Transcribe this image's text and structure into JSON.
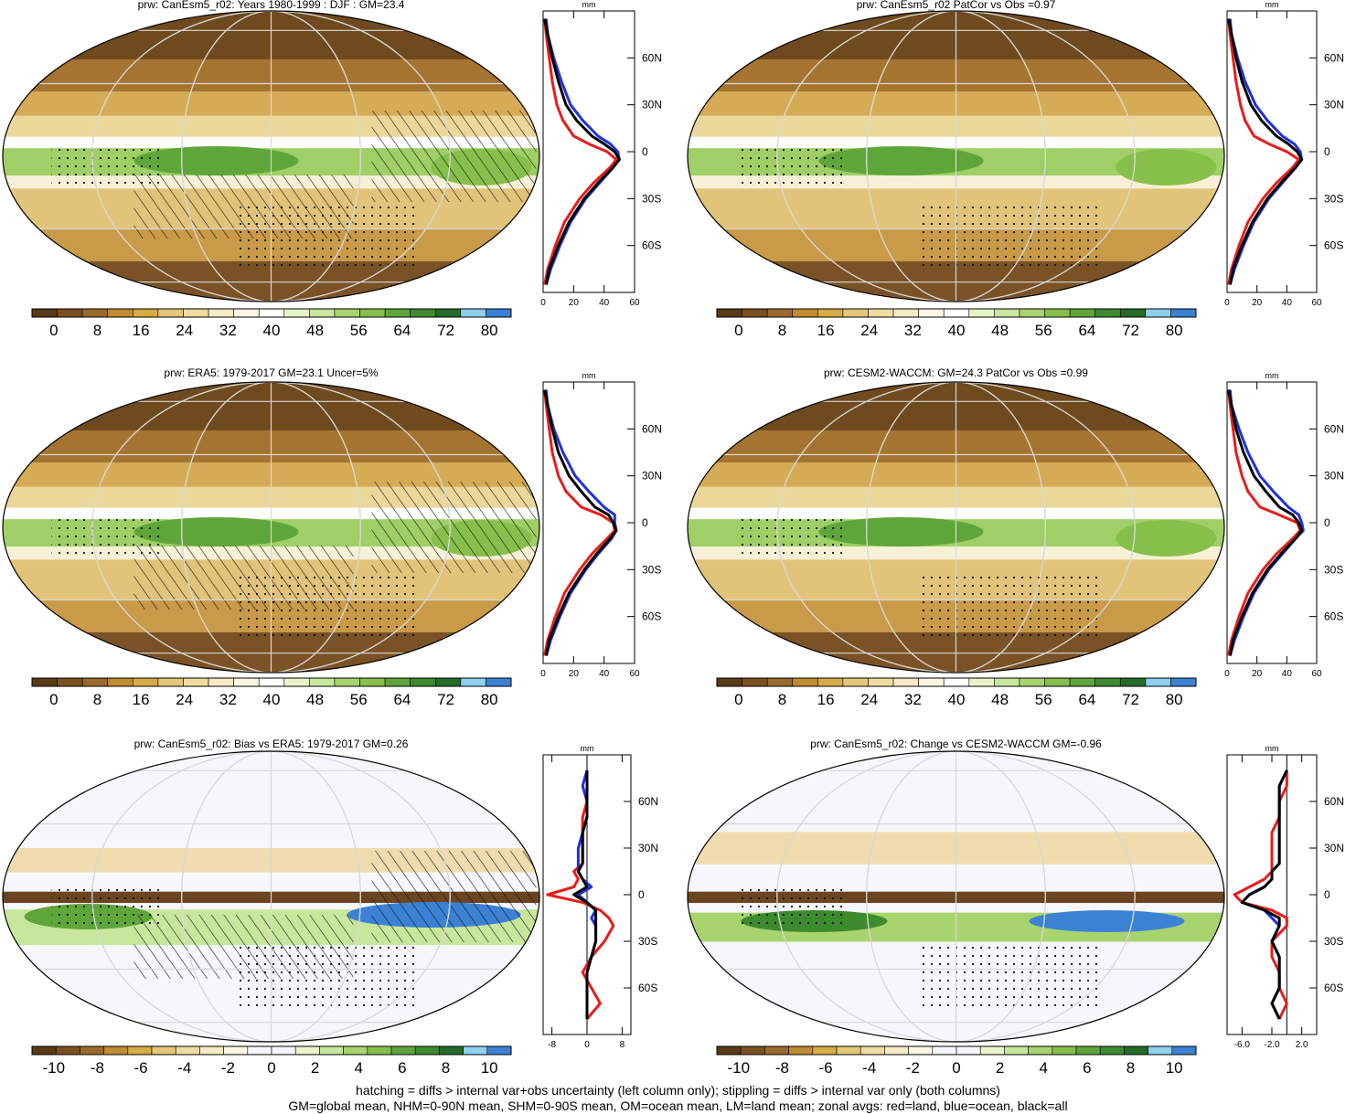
{
  "panels": [
    {
      "title": "prw: CanEsm5_r02: Years 1980-1999 : DJF : GM=23.4",
      "kind": "abs",
      "hatch": true,
      "stipple": true
    },
    {
      "title": "prw: CanEsm5_r02 PatCor vs Obs =0.97",
      "kind": "abs",
      "hatch": false,
      "stipple": true
    },
    {
      "title": "prw: ERA5: 1979-2017 GM=23.1 Uncer=5%",
      "kind": "abs",
      "hatch": true,
      "stipple": true
    },
    {
      "title": "prw: CESM2-WACCM: GM=24.3 PatCor vs Obs =0.99",
      "kind": "abs",
      "hatch": false,
      "stipple": true
    },
    {
      "title": "prw: CanEsm5_r02: Bias vs ERA5: 1979-2017 GM=0.26",
      "kind": "diff",
      "hatch": true,
      "stipple": true
    },
    {
      "title": "prw: CanEsm5_r02: Change vs CESM2-WACCM GM=-0.96",
      "kind": "diff2",
      "hatch": false,
      "stipple": true
    }
  ],
  "colorbars": {
    "abs_labels": [
      "0",
      "8",
      "16",
      "24",
      "32",
      "40",
      "48",
      "56",
      "64",
      "72",
      "80"
    ],
    "diff_labels": [
      "-10",
      "-8",
      "-6",
      "-4",
      "-2",
      "0",
      "2",
      "4",
      "6",
      "8",
      "10"
    ],
    "abs_colors": [
      "#5a3a14",
      "#7b5021",
      "#9a6a2b",
      "#c08b32",
      "#d7ab45",
      "#e5c877",
      "#efdc9f",
      "#f6ebc5",
      "#fbf6e3",
      "#ffffff",
      "#e9f5c9",
      "#c9e79c",
      "#a8d46d",
      "#86c04b",
      "#5fa63a",
      "#3d8a2f",
      "#246b27",
      "#8fd0ef",
      "#3b82d4"
    ],
    "diff_colors": [
      "#5a3a14",
      "#7b5021",
      "#9a6a2b",
      "#c08b32",
      "#d7ab45",
      "#e5c877",
      "#efdc9f",
      "#f6ebc5",
      "#fbf6e3",
      "#f5f7fc",
      "#f5f7fc",
      "#e9f5c9",
      "#c9e79c",
      "#a8d46d",
      "#86c04b",
      "#5fa63a",
      "#3d8a2f",
      "#246b27",
      "#8fd0ef",
      "#3b82d4"
    ]
  },
  "zonal": {
    "unit": "mm",
    "lat_ticks": [
      "60N",
      "30N",
      "0",
      "30S",
      "60S"
    ],
    "abs_xticks": [
      "0",
      "20",
      "40",
      "60"
    ],
    "bias_xticks": [
      "-8",
      "0",
      "8"
    ],
    "change_xticks": [
      "-6.0",
      "-2.0",
      "2.0"
    ],
    "series_colors": {
      "land": "#e81c1c",
      "ocean": "#1f2fe0",
      "all": "#000000"
    }
  },
  "chart_data": [
    {
      "type": "line",
      "title": "prw: CanEsm5_r02: Years 1980-1999 : DJF : GM=23.4",
      "ylabel": "",
      "xlabel": "mm",
      "xlim": [
        0,
        60
      ],
      "ylim": [
        -90,
        90
      ],
      "y": [
        -85,
        -75,
        -60,
        -45,
        -30,
        -20,
        -10,
        -5,
        0,
        5,
        10,
        20,
        30,
        45,
        60,
        75,
        85
      ],
      "series": [
        {
          "name": "land",
          "values": [
            1,
            3,
            8,
            14,
            24,
            33,
            44,
            48,
            42,
            30,
            20,
            13,
            9,
            6,
            4,
            2,
            1
          ]
        },
        {
          "name": "ocean",
          "values": [
            2,
            5,
            11,
            18,
            28,
            37,
            46,
            50,
            49,
            44,
            36,
            26,
            18,
            12,
            7,
            3,
            2
          ]
        },
        {
          "name": "all",
          "values": [
            2,
            4,
            10,
            17,
            27,
            36,
            46,
            50,
            47,
            40,
            32,
            22,
            15,
            10,
            6,
            3,
            1
          ]
        }
      ]
    },
    {
      "type": "line",
      "title": "prw: CanEsm5_r02 PatCor vs Obs =0.97",
      "ylabel": "",
      "xlabel": "mm",
      "xlim": [
        0,
        60
      ],
      "ylim": [
        -90,
        90
      ],
      "y": [
        -85,
        -75,
        -60,
        -45,
        -30,
        -20,
        -10,
        -5,
        0,
        5,
        10,
        20,
        30,
        45,
        60,
        75,
        85
      ],
      "series": [
        {
          "name": "land",
          "values": [
            1,
            3,
            8,
            14,
            24,
            33,
            44,
            48,
            40,
            28,
            18,
            12,
            9,
            6,
            4,
            2,
            1
          ]
        },
        {
          "name": "ocean",
          "values": [
            2,
            5,
            11,
            18,
            28,
            37,
            46,
            50,
            49,
            45,
            37,
            27,
            19,
            12,
            7,
            3,
            2
          ]
        },
        {
          "name": "all",
          "values": [
            2,
            4,
            10,
            17,
            27,
            36,
            46,
            50,
            47,
            41,
            33,
            23,
            16,
            10,
            6,
            3,
            1
          ]
        }
      ]
    },
    {
      "type": "line",
      "title": "prw: ERA5: 1979-2017 GM=23.1 Uncer=5%",
      "ylabel": "",
      "xlabel": "mm",
      "xlim": [
        0,
        60
      ],
      "ylim": [
        -90,
        90
      ],
      "y": [
        -85,
        -75,
        -60,
        -45,
        -30,
        -20,
        -10,
        -5,
        0,
        5,
        10,
        20,
        30,
        45,
        60,
        75,
        85
      ],
      "series": [
        {
          "name": "land",
          "values": [
            1,
            3,
            8,
            14,
            24,
            32,
            42,
            47,
            46,
            38,
            25,
            15,
            10,
            6,
            4,
            2,
            1
          ]
        },
        {
          "name": "ocean",
          "values": [
            2,
            5,
            11,
            18,
            28,
            36,
            45,
            48,
            47,
            47,
            40,
            30,
            21,
            13,
            7,
            3,
            2
          ]
        },
        {
          "name": "all",
          "values": [
            2,
            4,
            10,
            17,
            27,
            35,
            44,
            48,
            46,
            43,
            34,
            25,
            17,
            10,
            6,
            3,
            1
          ]
        }
      ]
    },
    {
      "type": "line",
      "title": "prw: CESM2-WACCM: GM=24.3 PatCor vs Obs =0.99",
      "ylabel": "",
      "xlabel": "mm",
      "xlim": [
        0,
        60
      ],
      "ylim": [
        -90,
        90
      ],
      "y": [
        -85,
        -75,
        -60,
        -45,
        -30,
        -20,
        -10,
        -5,
        0,
        5,
        10,
        20,
        30,
        45,
        60,
        75,
        85
      ],
      "series": [
        {
          "name": "land",
          "values": [
            1,
            3,
            8,
            14,
            24,
            33,
            44,
            49,
            47,
            35,
            22,
            14,
            10,
            6,
            4,
            2,
            1
          ]
        },
        {
          "name": "ocean",
          "values": [
            2,
            5,
            11,
            18,
            28,
            37,
            46,
            51,
            50,
            48,
            41,
            31,
            22,
            14,
            8,
            3,
            2
          ]
        },
        {
          "name": "all",
          "values": [
            2,
            4,
            10,
            17,
            27,
            36,
            46,
            50,
            48,
            44,
            35,
            26,
            18,
            11,
            6,
            3,
            1
          ]
        }
      ]
    },
    {
      "type": "line",
      "title": "prw: CanEsm5_r02: Bias vs ERA5: 1979-2017 GM=0.26",
      "ylabel": "",
      "xlabel": "mm",
      "xlim": [
        -10,
        10
      ],
      "ylim": [
        -90,
        90
      ],
      "y": [
        -80,
        -70,
        -60,
        -50,
        -40,
        -30,
        -20,
        -15,
        -10,
        -5,
        0,
        5,
        10,
        15,
        20,
        30,
        40,
        50,
        60,
        70,
        80
      ],
      "series": [
        {
          "name": "land",
          "values": [
            0,
            3,
            1,
            -1,
            1,
            4,
            6,
            5,
            3,
            -1,
            -9,
            -3,
            -2,
            -3,
            -1,
            -1,
            -1,
            -1,
            0,
            0,
            0
          ]
        },
        {
          "name": "ocean",
          "values": [
            0,
            0,
            0,
            0,
            1,
            2,
            2,
            1,
            2,
            0,
            -2,
            1,
            -1,
            -2,
            -2,
            -2,
            -1,
            0,
            0,
            -1,
            0
          ]
        },
        {
          "name": "all",
          "values": [
            0,
            0,
            0,
            0,
            1,
            2,
            2,
            2,
            2,
            0,
            -3,
            0,
            -1,
            -2,
            -1,
            -1,
            -1,
            0,
            0,
            0,
            0
          ]
        }
      ]
    },
    {
      "type": "line",
      "title": "prw: CanEsm5_r02: Change vs CESM2-WACCM GM=-0.96",
      "ylabel": "",
      "xlabel": "mm",
      "xlim": [
        -8,
        4
      ],
      "ylim": [
        -90,
        90
      ],
      "y": [
        -80,
        -70,
        -60,
        -50,
        -40,
        -30,
        -20,
        -15,
        -10,
        -5,
        0,
        5,
        10,
        15,
        20,
        30,
        40,
        50,
        60,
        70,
        80
      ],
      "series": [
        {
          "name": "land",
          "values": [
            -1,
            0,
            -1,
            -1,
            -2,
            -2,
            0,
            0,
            -2,
            -6,
            -7,
            -5,
            -3,
            -2,
            -2,
            -2,
            -2,
            -1,
            -1,
            0,
            0
          ]
        },
        {
          "name": "ocean",
          "values": [
            -1,
            -2,
            -1,
            -1,
            -1,
            -2,
            -1,
            -2,
            -3,
            -6,
            -5,
            -3,
            -2,
            -2,
            -1,
            -1,
            -1,
            -1,
            -1,
            -1,
            0
          ]
        },
        {
          "name": "all",
          "values": [
            -1,
            -2,
            -1,
            -1,
            -1,
            -2,
            -1,
            -1,
            -3,
            -6,
            -5,
            -3,
            -2,
            -2,
            -1,
            -1,
            -1,
            -1,
            -1,
            -1,
            0
          ]
        }
      ]
    }
  ],
  "footnote": {
    "line1": "hatching = diffs > internal var+obs uncertainty (left column only); stippling = diffs > internal var only (both columns)",
    "line2": "GM=global mean, NHM=0-90N mean, SHM=0-90S mean, OM=ocean mean, LM=land mean; zonal avgs: red=land, blue=ocean, black=all"
  }
}
